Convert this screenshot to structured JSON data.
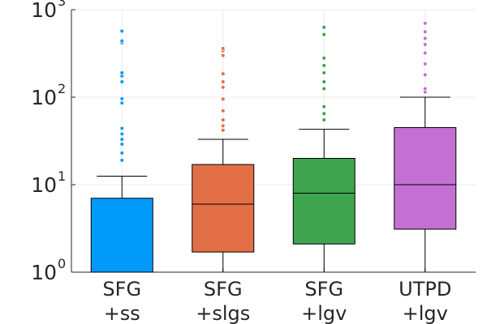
{
  "chart_data": {
    "type": "boxplot",
    "title": "",
    "xlabel": "",
    "ylabel": "",
    "yscale": "log10",
    "ylim": [
      1,
      1000
    ],
    "grid": true,
    "legend": "none",
    "y_ticks": [
      {
        "base": "10",
        "exp": "0",
        "value": 1
      },
      {
        "base": "10",
        "exp": "1",
        "value": 10
      },
      {
        "base": "10",
        "exp": "2",
        "value": 100
      },
      {
        "base": "10",
        "exp": "3",
        "value": 1000
      }
    ],
    "series": [
      {
        "name": "SFG +ss",
        "label_lines": [
          "SFG",
          "+ss"
        ],
        "color": "#009AFA",
        "whisker_low": 1,
        "q1": 1,
        "median": 1,
        "q3": 7,
        "whisker_high": 12.5,
        "outliers": [
          19,
          23,
          29,
          33,
          38,
          44,
          86,
          96,
          150,
          175,
          190,
          420,
          440,
          570
        ]
      },
      {
        "name": "SFG +slgs",
        "label_lines": [
          "SFG",
          "+slgs"
        ],
        "color": "#E26F46",
        "whisker_low": 1,
        "q1": 1.7,
        "median": 6,
        "q3": 17,
        "whisker_high": 33,
        "outliers": [
          42,
          47,
          55,
          70,
          95,
          130,
          150,
          185,
          300,
          340,
          360
        ]
      },
      {
        "name": "SFG +lgv",
        "label_lines": [
          "SFG",
          "+lgv"
        ],
        "color": "#3EA44E",
        "whisker_low": 1,
        "q1": 2.1,
        "median": 8,
        "q3": 20,
        "whisker_high": 43,
        "outliers": [
          55,
          65,
          78,
          125,
          150,
          190,
          230,
          280,
          520,
          630
        ]
      },
      {
        "name": "UTPD +lgv",
        "label_lines": [
          "UTPD",
          "+lgv"
        ],
        "color": "#C271D2",
        "whisker_low": 1,
        "q1": 3.1,
        "median": 10,
        "q3": 45,
        "whisker_high": 100,
        "outliers": [
          115,
          125,
          180,
          240,
          320,
          400,
          470,
          560,
          700
        ]
      }
    ]
  }
}
